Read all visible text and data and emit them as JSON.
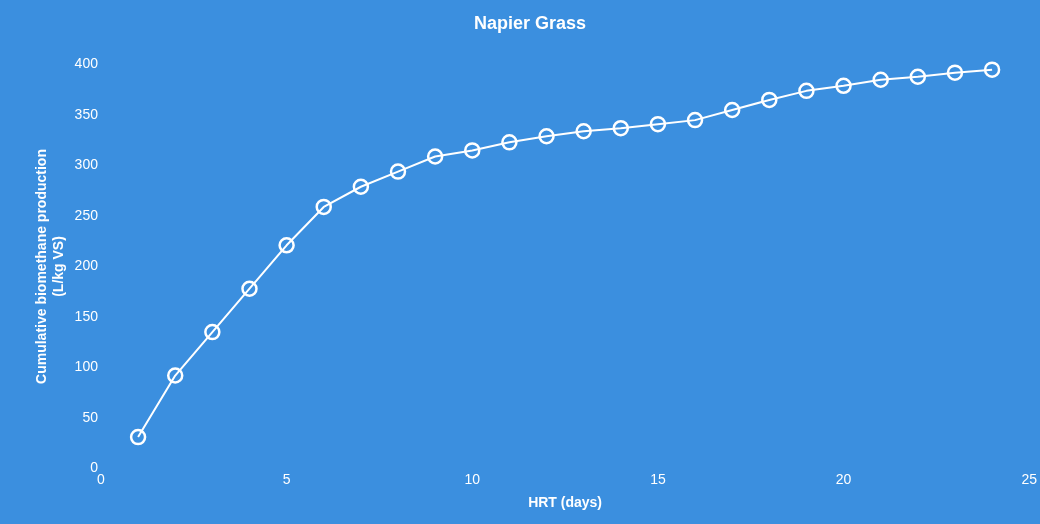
{
  "chart_data": {
    "type": "line",
    "title": "Napier Grass",
    "xlabel": "HRT (days)",
    "ylabel": "Cumulative biomethane production (L/kg VS)",
    "x": [
      1,
      2,
      3,
      4,
      5,
      6,
      7,
      8,
      9,
      10,
      11,
      12,
      13,
      14,
      15,
      16,
      17,
      18,
      19,
      20,
      21,
      22,
      23,
      24
    ],
    "series": [
      {
        "color": "#ffffff",
        "values": [
          31,
          92,
          135,
          178,
          221,
          259,
          279,
          294,
          309,
          315,
          323,
          329,
          334,
          337,
          341,
          345,
          355,
          365,
          374,
          379,
          385,
          388,
          392,
          395
        ]
      }
    ],
    "xlim": [
      0,
      25
    ],
    "xticks": [
      0,
      5,
      10,
      15,
      20,
      25
    ],
    "ylim": [
      0,
      400
    ],
    "yticks": [
      0,
      50,
      100,
      150,
      200,
      250,
      300,
      350,
      400
    ],
    "grid": false,
    "legend": false,
    "marker": "circle",
    "line_style": "solid"
  }
}
